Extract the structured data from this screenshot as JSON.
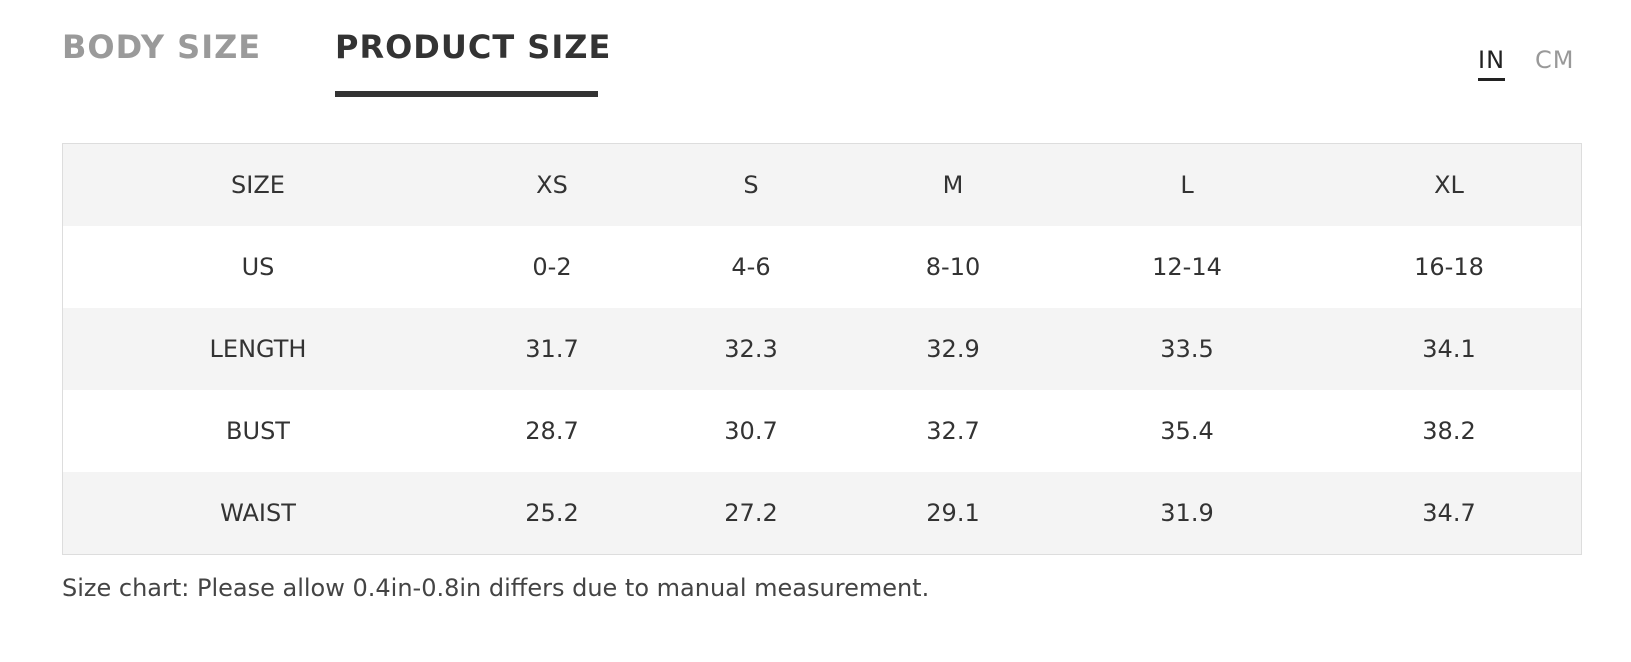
{
  "tabs": [
    "BODY SIZE",
    "PRODUCT SIZE"
  ],
  "active_tab": 1,
  "units": [
    "IN",
    "CM"
  ],
  "active_unit": 0,
  "table": {
    "header": [
      "SIZE",
      "XS",
      "S",
      "M",
      "L",
      "XL"
    ],
    "rows": [
      [
        "US",
        "0-2",
        "4-6",
        "8-10",
        "12-14",
        "16-18"
      ],
      [
        "LENGTH",
        31.7,
        32.3,
        32.9,
        33.5,
        34.1
      ],
      [
        "BUST",
        28.7,
        30.7,
        32.7,
        35.4,
        38.2
      ],
      [
        "WAIST",
        25.2,
        27.2,
        29.1,
        31.9,
        34.7
      ]
    ]
  },
  "note": "Size chart: Please allow 0.4in-0.8in differs due to manual measurement."
}
